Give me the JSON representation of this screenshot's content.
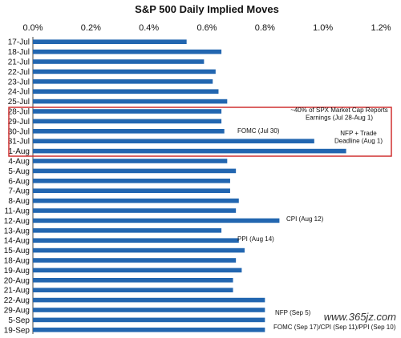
{
  "chart_data": {
    "type": "bar",
    "orientation": "horizontal",
    "title": "S&P 500 Daily Implied Moves",
    "x_ticks": [
      "0.0%",
      "0.2%",
      "0.4%",
      "0.6%",
      "0.8%",
      "1.0%",
      "1.2%"
    ],
    "xlim": [
      0,
      1.2
    ],
    "axis_position": "top",
    "grid": false,
    "bar_color": "#2266b0",
    "highlight_color": "#cc2222",
    "categories": [
      "17-Jul",
      "18-Jul",
      "21-Jul",
      "22-Jul",
      "23-Jul",
      "24-Jul",
      "25-Jul",
      "28-Jul",
      "29-Jul",
      "30-Jul",
      "31-Jul",
      "1-Aug",
      "4-Aug",
      "5-Aug",
      "6-Aug",
      "7-Aug",
      "8-Aug",
      "11-Aug",
      "12-Aug",
      "13-Aug",
      "14-Aug",
      "15-Aug",
      "18-Aug",
      "19-Aug",
      "20-Aug",
      "21-Aug",
      "22-Aug",
      "29-Aug",
      "5-Sep",
      "19-Sep"
    ],
    "values": [
      0.53,
      0.65,
      0.59,
      0.63,
      0.62,
      0.64,
      0.67,
      0.65,
      0.65,
      0.66,
      0.97,
      1.08,
      0.67,
      0.7,
      0.68,
      0.68,
      0.71,
      0.7,
      0.85,
      0.65,
      0.71,
      0.73,
      0.7,
      0.72,
      0.69,
      0.69,
      0.8,
      0.8,
      0.8,
      0.8
    ],
    "highlight_range": [
      "28-Jul",
      "1-Aug"
    ],
    "annotations": [
      {
        "category": "28-Jul",
        "lines": [
          "~40% of SPX Market Cap Reports",
          "Earnings (Jul 28-Aug 1)"
        ]
      },
      {
        "category": "30-Jul",
        "lines": [
          "FOMC (Jul 30)"
        ]
      },
      {
        "category": "31-Jul",
        "lines": [
          "NFP + Trade",
          "Deadline  (Aug 1)"
        ]
      },
      {
        "category": "12-Aug",
        "lines": [
          "CPI (Aug 12)"
        ]
      },
      {
        "category": "14-Aug",
        "lines": [
          "PPI (Aug 14)"
        ]
      },
      {
        "category": "5-Sep",
        "lines": [
          "NFP (Sep 5)"
        ]
      },
      {
        "category": "19-Sep",
        "lines": [
          "FOMC (Sep 17)/CPI (Sep 11)/PPI (Sep 10)"
        ]
      }
    ]
  },
  "watermark": "www.365jz.com"
}
